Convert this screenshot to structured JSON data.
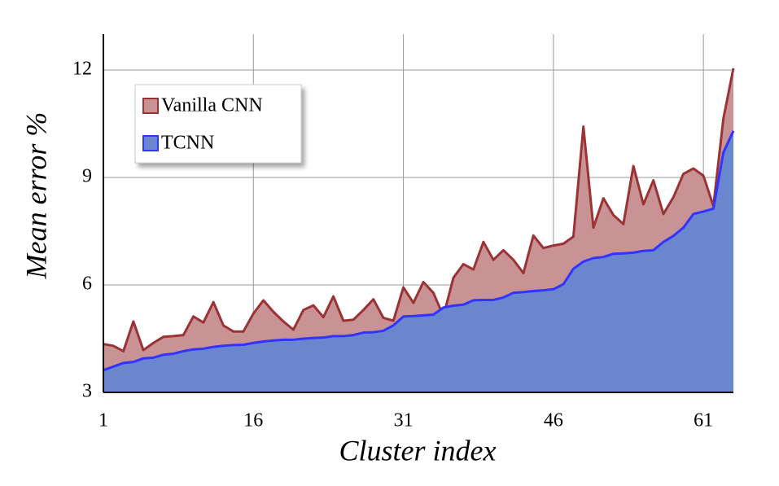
{
  "chart_data": {
    "type": "area",
    "xlabel": "Cluster index",
    "ylabel": "Mean error %",
    "x": [
      1,
      2,
      3,
      4,
      5,
      6,
      7,
      8,
      9,
      10,
      11,
      12,
      13,
      14,
      15,
      16,
      17,
      18,
      19,
      20,
      21,
      22,
      23,
      24,
      25,
      26,
      27,
      28,
      29,
      30,
      31,
      32,
      33,
      34,
      35,
      36,
      37,
      38,
      39,
      40,
      41,
      42,
      43,
      44,
      45,
      46,
      47,
      48,
      49,
      50,
      51,
      52,
      53,
      54,
      55,
      56,
      57,
      58,
      59,
      60,
      61,
      62,
      63,
      64
    ],
    "series": [
      {
        "name": "Vanilla CNN",
        "color": "#c99395",
        "edge": "#9b3335",
        "values": [
          4.35,
          4.3,
          4.15,
          4.98,
          4.18,
          4.38,
          4.55,
          4.57,
          4.6,
          5.12,
          4.95,
          5.52,
          4.87,
          4.7,
          4.7,
          5.2,
          5.57,
          5.25,
          4.98,
          4.75,
          5.3,
          5.43,
          5.1,
          5.68,
          5.0,
          5.03,
          5.3,
          5.6,
          5.08,
          5.0,
          5.93,
          5.5,
          6.08,
          5.78,
          5.13,
          6.2,
          6.58,
          6.43,
          7.2,
          6.7,
          6.97,
          6.7,
          6.33,
          7.38,
          7.03,
          7.1,
          7.15,
          7.35,
          10.42,
          7.6,
          8.42,
          7.95,
          7.7,
          9.32,
          8.25,
          8.92,
          7.98,
          8.45,
          9.1,
          9.25,
          9.05,
          8.2,
          10.65,
          12.05
        ]
      },
      {
        "name": "TCNN",
        "color": "#6a86cf",
        "edge": "#3333ff",
        "values": [
          3.62,
          3.72,
          3.82,
          3.85,
          3.95,
          3.97,
          4.05,
          4.08,
          4.15,
          4.2,
          4.22,
          4.27,
          4.3,
          4.32,
          4.33,
          4.38,
          4.42,
          4.45,
          4.47,
          4.47,
          4.5,
          4.52,
          4.53,
          4.57,
          4.57,
          4.6,
          4.67,
          4.68,
          4.72,
          4.87,
          5.12,
          5.13,
          5.15,
          5.17,
          5.37,
          5.42,
          5.45,
          5.57,
          5.58,
          5.58,
          5.65,
          5.78,
          5.8,
          5.83,
          5.85,
          5.88,
          6.02,
          6.45,
          6.65,
          6.75,
          6.78,
          6.87,
          6.88,
          6.9,
          6.95,
          6.97,
          7.2,
          7.37,
          7.6,
          7.98,
          8.05,
          8.13,
          9.7,
          10.3
        ]
      }
    ],
    "xlim": [
      1,
      64
    ],
    "ylim": [
      3,
      13
    ],
    "xticks": [
      1,
      16,
      31,
      46,
      61
    ],
    "yticks": [
      3,
      6,
      9,
      12
    ],
    "grid": true,
    "legend": "upper left"
  }
}
